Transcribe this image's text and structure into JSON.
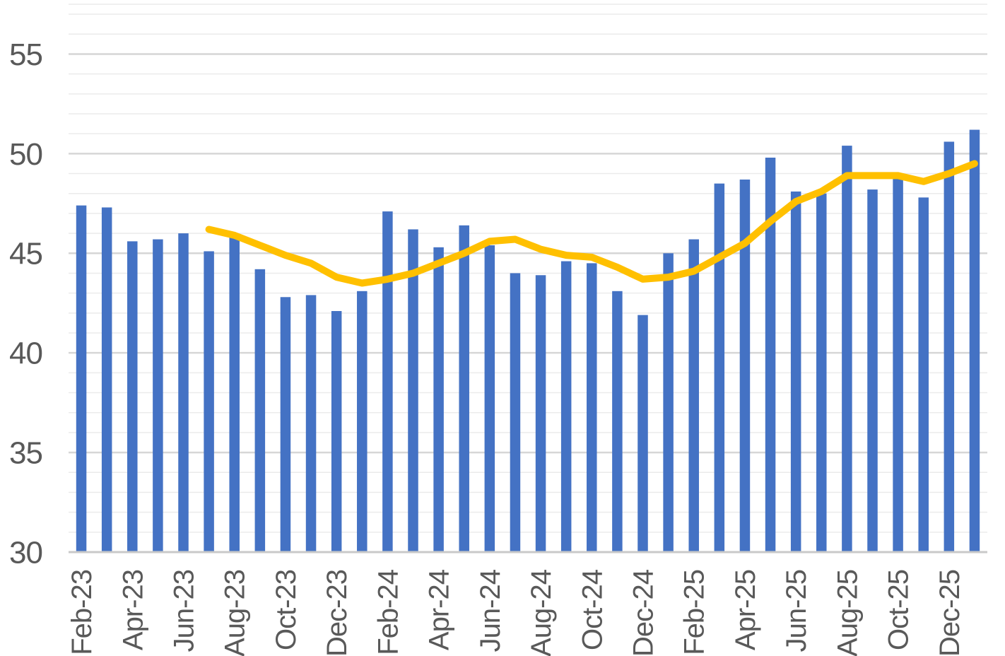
{
  "chart_data": {
    "type": "bar+line",
    "title": "",
    "categories": [
      "Feb-23",
      "Mar-23",
      "Apr-23",
      "May-23",
      "Jun-23",
      "Jul-23",
      "Aug-23",
      "Sep-23",
      "Oct-23",
      "Nov-23",
      "Dec-23",
      "Jan-24",
      "Feb-24",
      "Mar-24",
      "Apr-24",
      "May-24",
      "Jun-24",
      "Jul-24",
      "Aug-24",
      "Sep-24",
      "Oct-24",
      "Nov-24",
      "Dec-24",
      "Jan-25",
      "Feb-25",
      "Mar-25",
      "Apr-25",
      "May-25",
      "Jun-25",
      "Jul-25",
      "Aug-25",
      "Sep-25",
      "Oct-25",
      "Nov-25",
      "Dec-25",
      "Jan-26"
    ],
    "series": [
      {
        "name": "monthly-bars",
        "type": "bar",
        "color": "#4472C4",
        "values": [
          47.4,
          47.3,
          45.6,
          45.7,
          46.0,
          45.1,
          45.9,
          44.2,
          42.8,
          42.9,
          42.1,
          43.1,
          47.1,
          46.2,
          45.3,
          46.4,
          45.4,
          44.0,
          43.9,
          44.6,
          44.5,
          43.1,
          41.9,
          45.0,
          45.7,
          48.5,
          48.7,
          49.8,
          48.1,
          48.0,
          50.4,
          48.2,
          48.8,
          47.8,
          50.6,
          51.2
        ]
      },
      {
        "name": "six-month-moving-average-line",
        "type": "line",
        "color": "#FFC000",
        "values": [
          null,
          null,
          null,
          null,
          null,
          46.2,
          45.9,
          45.4,
          44.9,
          44.5,
          43.8,
          43.5,
          43.7,
          44.0,
          44.5,
          45.0,
          45.6,
          45.7,
          45.2,
          44.9,
          44.8,
          44.3,
          43.7,
          43.8,
          44.1,
          44.8,
          45.5,
          46.6,
          47.6,
          48.1,
          48.9,
          48.9,
          48.9,
          48.6,
          49.0,
          49.5
        ]
      }
    ],
    "x_axis": {
      "tick_labels": [
        "Feb-23",
        "Apr-23",
        "Jun-23",
        "Aug-23",
        "Oct-23",
        "Dec-23",
        "Feb-24",
        "Apr-24",
        "Jun-24",
        "Aug-24",
        "Oct-24",
        "Dec-24",
        "Feb-25",
        "Apr-25",
        "Jun-25",
        "Aug-25",
        "Oct-25",
        "Dec-25"
      ],
      "tick_every": 2,
      "label_rotation_deg": -90
    },
    "y_axis": {
      "min": 30,
      "max": 57.5,
      "minor_step": 1,
      "major_step": 5,
      "tick_labels": [
        "30",
        "35",
        "40",
        "45",
        "50",
        "55"
      ]
    },
    "grid": {
      "show": true,
      "minor_color": "#EBEBEB",
      "major_color": "#D6D6D6",
      "axis_line_color": "#C9C9C9"
    },
    "legend": {
      "visible": false
    },
    "label_color": "#595959",
    "background_color": "#FFFFFF"
  }
}
